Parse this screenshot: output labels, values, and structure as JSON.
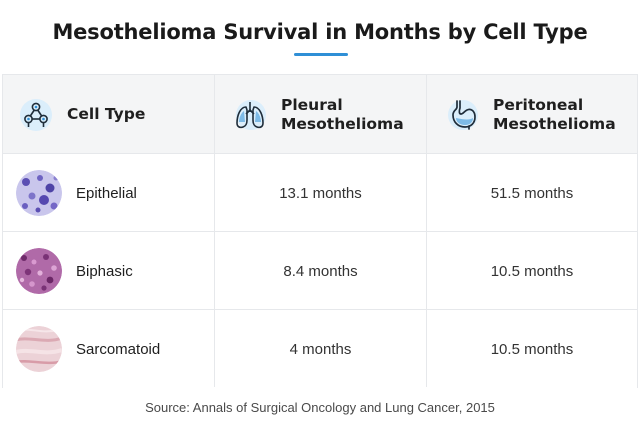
{
  "title": "Mesothelioma Survival in Months by Cell Type",
  "accent_color": "#2f8fd6",
  "icon_color": "#2f8fd6",
  "table": {
    "headers": [
      {
        "label_line1": "Cell Type",
        "label_line2": "",
        "icon": "cells-icon"
      },
      {
        "label_line1": "Pleural",
        "label_line2": "Mesothelioma",
        "icon": "lungs-icon"
      },
      {
        "label_line1": "Peritoneal",
        "label_line2": "Mesothelioma",
        "icon": "stomach-icon"
      }
    ],
    "rows": [
      {
        "cell_type": "Epithelial",
        "pleural": "13.1 months",
        "peritoneal": "51.5 months",
        "thumb_color": "#7d74c9"
      },
      {
        "cell_type": "Biphasic",
        "pleural": "8.4 months",
        "peritoneal": "10.5 months",
        "thumb_color": "#8a3f86"
      },
      {
        "cell_type": "Sarcomatoid",
        "pleural": "4 months",
        "peritoneal": "10.5 months",
        "thumb_color": "#e8c3cb"
      }
    ]
  },
  "source": "Source: Annals of Surgical Oncology and Lung Cancer, 2015"
}
